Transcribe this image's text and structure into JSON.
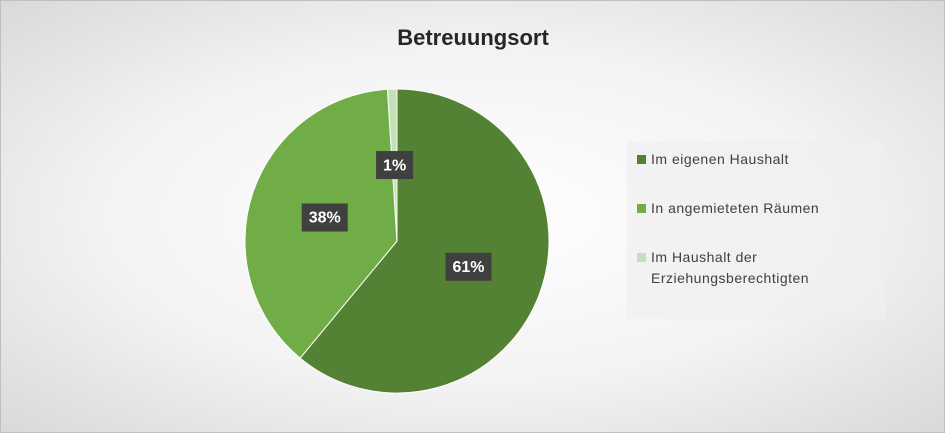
{
  "chart_data": {
    "type": "pie",
    "title": "Betreuungsort",
    "categories": [
      "Im eigenen Haushalt",
      "In angemieteten Räumen",
      "Im Haushalt der Erziehungsberechtigten"
    ],
    "values": [
      61,
      38,
      1
    ],
    "value_labels": [
      "61%",
      "38%",
      "1%"
    ],
    "colors": [
      "#548235",
      "#70ad47",
      "#c5e0b4"
    ],
    "legend": "right"
  }
}
